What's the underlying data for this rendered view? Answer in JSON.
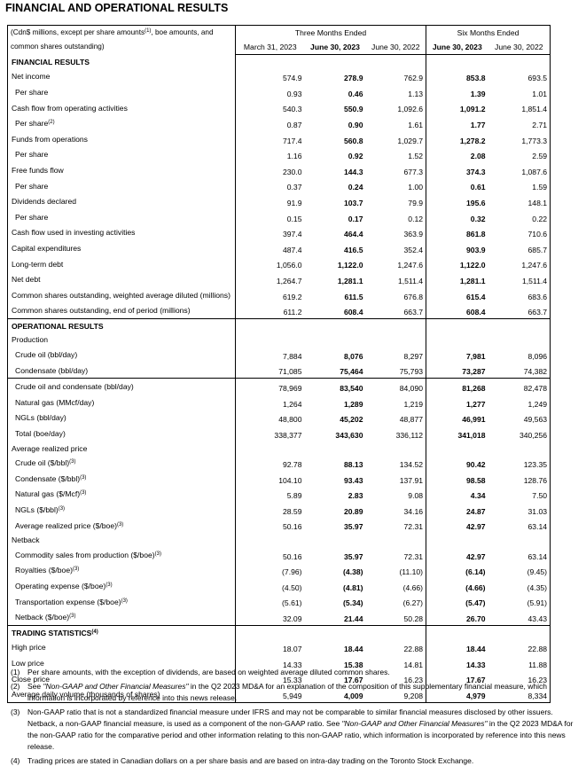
{
  "title": "FINANCIAL AND OPERATIONAL RESULTS",
  "table": {
    "header": {
      "note": [
        "(Cdn$ millions, except per share amounts",
        "(1)",
        ", boe amounts, and common shares outstanding)"
      ],
      "groups": [
        "Three Months Ended",
        "Six Months Ended"
      ],
      "columns": [
        "March 31, 2023",
        "June 30, 2023",
        "June 30, 2022",
        "June 30, 2023",
        "June 30, 2022"
      ]
    },
    "sections": [
      {
        "title": "FINANCIAL RESULTS",
        "rows": [
          {
            "label": "Net income",
            "values": [
              "574.9",
              "278.9",
              "762.9",
              "853.8",
              "693.5"
            ],
            "detail": {
              "label": "Per share",
              "values": [
                "0.93",
                "0.46",
                "1.13",
                "1.39",
                "1.01"
              ]
            }
          },
          {
            "label": "Cash flow from operating activities",
            "values": [
              "540.3",
              "550.9",
              "1,092.6",
              "1,091.2",
              "1,851.4"
            ],
            "detail": {
              "label": "Per share",
              "sup": "(2)",
              "values": [
                "0.87",
                "0.90",
                "1.61",
                "1.77",
                "2.71"
              ]
            }
          },
          {
            "label": "Funds from operations",
            "values": [
              "717.4",
              "560.8",
              "1,029.7",
              "1,278.2",
              "1,773.3"
            ],
            "detail": {
              "label": "Per share",
              "values": [
                "1.16",
                "0.92",
                "1.52",
                "2.08",
                "2.59"
              ]
            }
          },
          {
            "label": "Free funds flow",
            "values": [
              "230.0",
              "144.3",
              "677.3",
              "374.3",
              "1,087.6"
            ],
            "detail": {
              "label": "Per share",
              "values": [
                "0.37",
                "0.24",
                "1.00",
                "0.61",
                "1.59"
              ]
            }
          },
          {
            "label": "Dividends declared",
            "values": [
              "91.9",
              "103.7",
              "79.9",
              "195.6",
              "148.1"
            ],
            "detail": {
              "label": "Per share",
              "values": [
                "0.15",
                "0.17",
                "0.12",
                "0.32",
                "0.22"
              ]
            }
          },
          {
            "label": "Cash flow used in investing activities",
            "values": [
              "397.4",
              "464.4",
              "363.9",
              "861.8",
              "710.6"
            ]
          },
          {
            "label": "Capital expenditures",
            "values": [
              "487.4",
              "416.5",
              "352.4",
              "903.9",
              "685.7"
            ]
          },
          {
            "label": "Long-term debt",
            "values": [
              "1,056.0",
              "1,122.0",
              "1,247.6",
              "1,122.0",
              "1,247.6"
            ]
          },
          {
            "label": "Net debt",
            "values": [
              "1,264.7",
              "1,281.1",
              "1,511.4",
              "1,281.1",
              "1,511.4"
            ]
          },
          {
            "label": "Common shares outstanding, weighted average diluted (millions)",
            "values": [
              "619.2",
              "611.5",
              "676.8",
              "615.4",
              "683.6"
            ]
          },
          {
            "label": "Common shares outstanding, end of period (millions)",
            "values": [
              "611.2",
              "608.4",
              "663.7",
              "608.4",
              "663.7"
            ]
          }
        ]
      },
      {
        "title": "OPERATIONAL RESULTS",
        "groups": [
          {
            "title": "Production",
            "blocks": [
              [
                {
                  "label": "Crude oil (bbl/day)",
                  "values": [
                    "7,884",
                    "8,076",
                    "8,297",
                    "7,981",
                    "8,096"
                  ]
                },
                {
                  "label": "Condensate (bbl/day)",
                  "values": [
                    "71,085",
                    "75,464",
                    "75,793",
                    "73,287",
                    "74,382"
                  ]
                }
              ],
              [
                {
                  "label": "Crude oil and condensate (bbl/day)",
                  "values": [
                    "78,969",
                    "83,540",
                    "84,090",
                    "81,268",
                    "82,478"
                  ]
                },
                {
                  "label": "Natural gas (MMcf/day)",
                  "values": [
                    "1,264",
                    "1,289",
                    "1,219",
                    "1,277",
                    "1,249"
                  ]
                },
                {
                  "label": "NGLs (bbl/day)",
                  "values": [
                    "48,800",
                    "45,202",
                    "48,877",
                    "46,991",
                    "49,563"
                  ]
                },
                {
                  "label": "Total (boe/day)",
                  "values": [
                    "338,377",
                    "343,630",
                    "336,112",
                    "341,018",
                    "340,256"
                  ]
                }
              ]
            ]
          },
          {
            "title": "Average realized price",
            "rows": [
              {
                "label": "Crude oil ($/bbl)",
                "sup": "(3)",
                "values": [
                  "92.78",
                  "88.13",
                  "134.52",
                  "90.42",
                  "123.35"
                ]
              },
              {
                "label": "Condensate ($/bbl)",
                "sup": "(3)",
                "values": [
                  "104.10",
                  "93.43",
                  "137.91",
                  "98.58",
                  "128.76"
                ]
              },
              {
                "label": "Natural gas ($/Mcf)",
                "sup": "(3)",
                "values": [
                  "5.89",
                  "2.83",
                  "9.08",
                  "4.34",
                  "7.50"
                ]
              },
              {
                "label": "NGLs ($/bbl)",
                "sup": "(3)",
                "values": [
                  "28.59",
                  "20.89",
                  "34.16",
                  "24.87",
                  "31.03"
                ]
              },
              {
                "label": "Average realized price ($/boe)",
                "sup": "(3)",
                "values": [
                  "50.16",
                  "35.97",
                  "72.31",
                  "42.97",
                  "63.14"
                ]
              }
            ]
          },
          {
            "title": "Netback",
            "rows": [
              {
                "label": "Commodity sales from production ($/boe)",
                "sup": "(3)",
                "values": [
                  "50.16",
                  "35.97",
                  "72.31",
                  "42.97",
                  "63.14"
                ]
              },
              {
                "label": "Royalties ($/boe)",
                "sup": "(3)",
                "values": [
                  "(7.96)",
                  "(4.38)",
                  "(11.10)",
                  "(6.14)",
                  "(9.45)"
                ]
              },
              {
                "label": "Operating expense ($/boe)",
                "sup": "(3)",
                "values": [
                  "(4.50)",
                  "(4.81)",
                  "(4.66)",
                  "(4.66)",
                  "(4.35)"
                ]
              },
              {
                "label": "Transportation expense ($/boe)",
                "sup": "(3)",
                "values": [
                  "(5.61)",
                  "(5.34)",
                  "(6.27)",
                  "(5.47)",
                  "(5.91)"
                ]
              },
              {
                "label": "Netback ($/boe)",
                "sup": "(3)",
                "values": [
                  "32.09",
                  "21.44",
                  "50.28",
                  "26.70",
                  "43.43"
                ]
              }
            ]
          }
        ]
      },
      {
        "title": "TRADING STATISTICS",
        "sup": "(4)",
        "rows": [
          {
            "label": "High price",
            "values": [
              "18.07",
              "18.44",
              "22.88",
              "18.44",
              "22.88"
            ]
          },
          {
            "label": "Low price",
            "values": [
              "14.33",
              "15.38",
              "14.81",
              "14.33",
              "11.88"
            ]
          },
          {
            "label": "Close price",
            "values": [
              "15.33",
              "17.67",
              "16.23",
              "17.67",
              "16.23"
            ]
          },
          {
            "label": "Average daily volume (thousands of shares)",
            "values": [
              "5,949",
              "4,009",
              "9,208",
              "4,979",
              "8,334"
            ]
          }
        ]
      }
    ]
  },
  "footnotes": [
    {
      "marker": "(1)",
      "parts": [
        "Per share amounts, with the exception of dividends, are based on weighted average diluted common shares."
      ]
    },
    {
      "marker": "(2)",
      "parts": [
        "See ",
        {
          "text": "\"Non-GAAP and Other Financial Measures\"",
          "italic": true
        },
        " in the Q2 2023 MD&A for an explanation of the composition of this supplementary financial measure, which information is incorporated by reference into this news release."
      ]
    },
    {
      "marker": "(3)",
      "parts": [
        "Non-GAAP ratio that is not a standardized financial measure under IFRS and may not be comparable to similar financial measures disclosed by other issuers. Netback, a non-GAAP financial measure, is used as a component of the non-GAAP ratio. See ",
        {
          "text": "\"Non-GAAP and Other Financial Measures\"",
          "italic": true
        },
        " in the Q2 2023 MD&A for the non-GAAP ratio for the comparative period and other information relating to this non-GAAP ratio, which information is incorporated by reference into this news release."
      ]
    },
    {
      "marker": "(4)",
      "parts": [
        "Trading prices are stated in Canadian dollars on a per share basis and are based on intra-day trading on the Toronto Stock Exchange."
      ]
    }
  ]
}
